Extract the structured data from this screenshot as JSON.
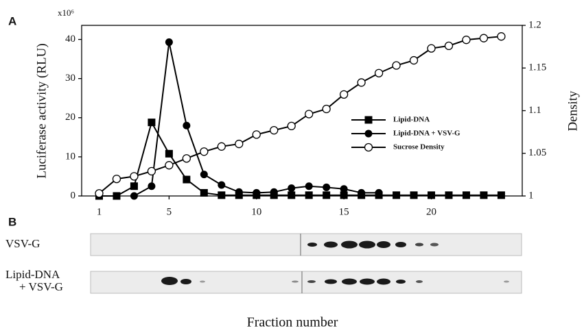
{
  "chart_data": {
    "type": "line",
    "panel_a": "A",
    "panel_b": "B",
    "multiplier": "x10⁶",
    "ylabel": "Luciferase activity (RLU)",
    "y2label": "Density",
    "xlabel": "Fraction number",
    "x": [
      1,
      2,
      3,
      4,
      5,
      6,
      7,
      8,
      9,
      10,
      11,
      12,
      13,
      14,
      15,
      16,
      17,
      18,
      19,
      20,
      21,
      22,
      23,
      24
    ],
    "xlim": [
      0,
      25.2
    ],
    "xticks": [
      1,
      5,
      10,
      15,
      20
    ],
    "ylim": [
      0,
      43.6
    ],
    "yticks": [
      0,
      10,
      20,
      30,
      40
    ],
    "y2lim": [
      1,
      1.2
    ],
    "y2ticks": [
      1,
      1.05,
      1.1,
      1.15,
      1.2
    ],
    "series": [
      {
        "name": "Lipid-DNA",
        "color": "#000000",
        "marker": "square",
        "values": [
          0,
          0,
          2.5,
          18.8,
          10.8,
          4.2,
          0.8,
          0.2,
          0.2,
          0.2,
          0.2,
          0.2,
          0.2,
          0.2,
          0.2,
          0.2,
          0.2,
          0.2,
          0.2,
          0.2,
          0.2,
          0.2,
          0.2,
          0.2
        ]
      },
      {
        "name": "Lipid-DNA + VSV-G",
        "color": "#000000",
        "marker": "circle",
        "values": [
          null,
          null,
          0,
          2.5,
          39.3,
          18,
          5.5,
          2.8,
          1,
          0.8,
          1,
          2,
          2.5,
          2.2,
          1.8,
          0.8,
          0.8,
          null,
          null,
          null,
          null,
          null,
          null,
          null
        ]
      },
      {
        "name": "Sucrose Density",
        "color": "#000000",
        "marker": "open-circle",
        "axis": "y2",
        "values": [
          1.003,
          1.02,
          1.023,
          1.029,
          1.036,
          1.044,
          1.052,
          1.058,
          1.061,
          1.072,
          1.077,
          1.082,
          1.096,
          1.102,
          1.119,
          1.133,
          1.144,
          1.153,
          1.159,
          1.173,
          1.176,
          1.183,
          1.185,
          1.187
        ]
      }
    ],
    "blot_labels": [
      [
        "VSV-G"
      ],
      [
        "Lipid-DNA",
        "+ VSV-G"
      ]
    ]
  }
}
